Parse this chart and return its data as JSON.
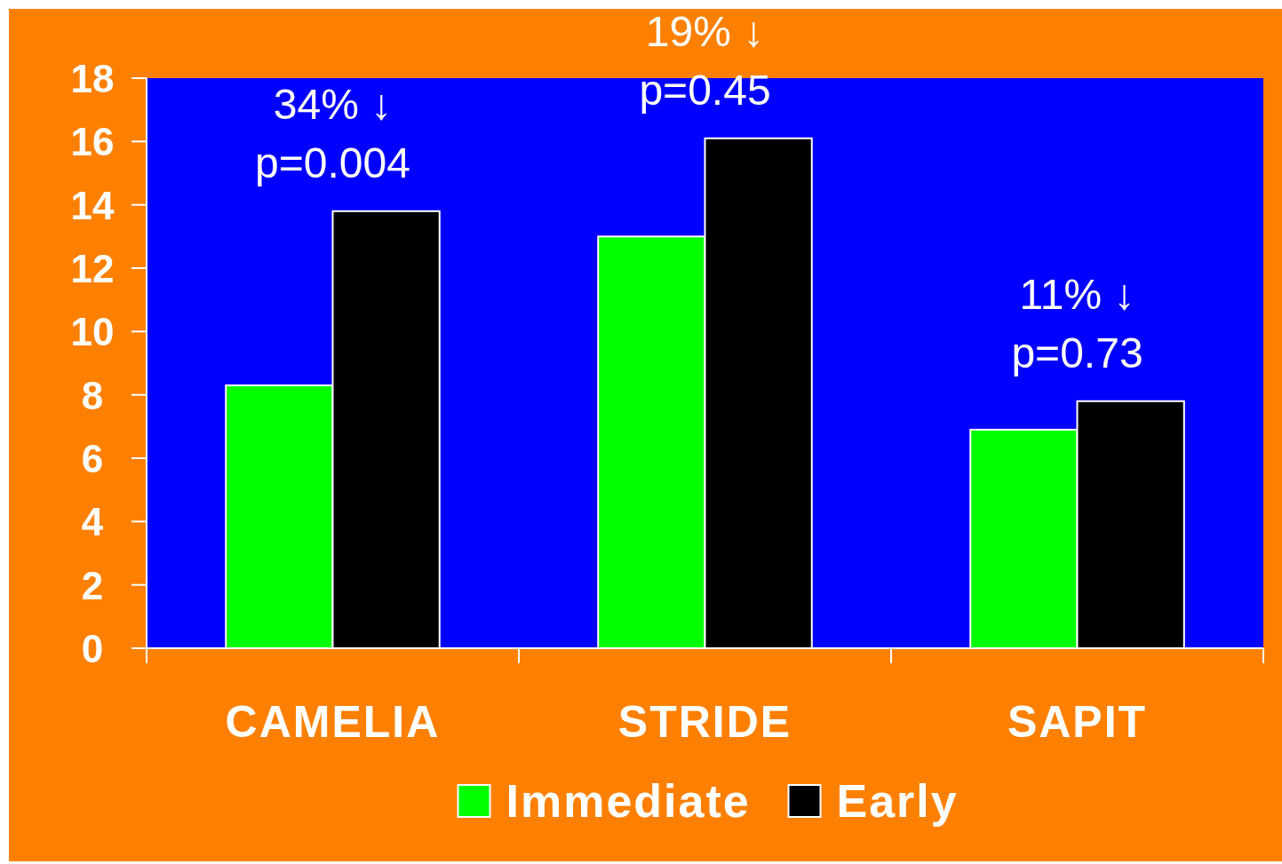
{
  "chart_data": {
    "type": "bar",
    "categories": [
      "CAMELIA",
      "STRIDE",
      "SAPIT"
    ],
    "series": [
      {
        "name": "Immediate",
        "color": "#00ff00",
        "values": [
          8.3,
          13.0,
          6.9
        ]
      },
      {
        "name": "Early",
        "color": "#000000",
        "values": [
          13.8,
          16.1,
          7.8
        ]
      }
    ],
    "ylim": [
      0,
      18
    ],
    "yticks": [
      0,
      2,
      4,
      6,
      8,
      10,
      12,
      14,
      16,
      18
    ],
    "annotations": [
      "34% ↓\np=0.004",
      "19% ↓\np=0.45",
      "11% ↓\np=0.73"
    ],
    "legend": "bottom",
    "grid": false
  }
}
